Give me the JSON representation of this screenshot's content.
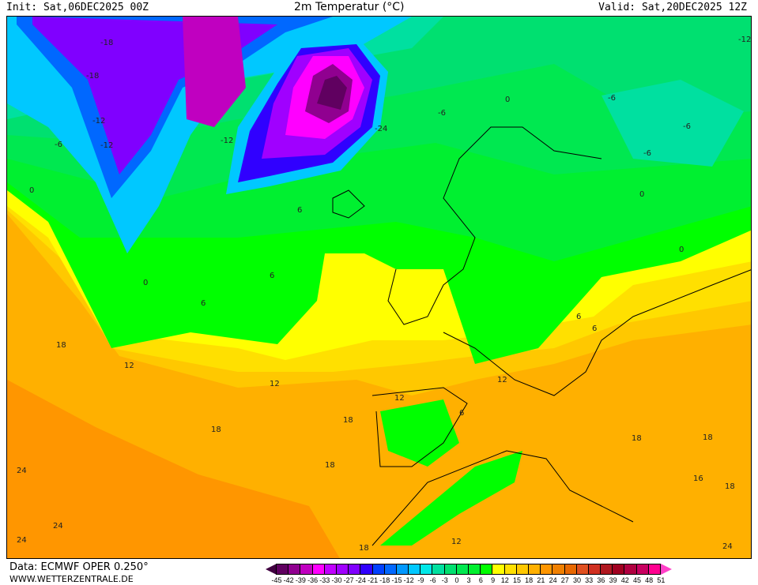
{
  "header": {
    "init": "Init: Sat,06DEC2025 00Z",
    "title": "2m Temperatur (°C)",
    "valid": "Valid: Sat,20DEC2025 12Z"
  },
  "footer": {
    "data_source": "Data: ECMWF OPER 0.250°",
    "website": "WWW.WETTERZENTRALE.DE"
  },
  "legend": {
    "ticks": [
      "-45",
      "-42",
      "-39",
      "-36",
      "-33",
      "-30",
      "-27",
      "-24",
      "-21",
      "-18",
      "-15",
      "-12",
      "-9",
      "-6",
      "-3",
      "0",
      "3",
      "6",
      "9",
      "12",
      "15",
      "18",
      "21",
      "24",
      "27",
      "30",
      "33",
      "36",
      "39",
      "42",
      "45",
      "48",
      "51"
    ],
    "below_color": "#400040",
    "above_color": "#ff40c8",
    "colors": [
      "#600060",
      "#900090",
      "#c000c0",
      "#ff00ff",
      "#c000ff",
      "#a000ff",
      "#8000ff",
      "#3000ff",
      "#0040ff",
      "#0068ff",
      "#0098ff",
      "#00c8ff",
      "#00e8e8",
      "#00e0a0",
      "#00e070",
      "#00e850",
      "#00f030",
      "#00ff00",
      "#ffff00",
      "#ffe000",
      "#ffc800",
      "#ffb000",
      "#ff9600",
      "#f08000",
      "#e86800",
      "#e05020",
      "#d03020",
      "#b01820",
      "#a00020",
      "#b00040",
      "#c80060",
      "#ff0090"
    ]
  },
  "contour_labels": [
    "-18",
    "-12",
    "-6",
    "-12",
    "-18",
    "-24",
    "-12",
    "-6",
    "0",
    "-6",
    "-12",
    "-6",
    "-6",
    "0",
    "6",
    "6",
    "0",
    "6",
    "6",
    "0",
    "18",
    "12",
    "12",
    "18",
    "18",
    "24",
    "24",
    "24",
    "18",
    "18",
    "12",
    "18",
    "18",
    "18",
    "16",
    "24",
    "12",
    "12",
    "6",
    "0",
    "6"
  ]
}
